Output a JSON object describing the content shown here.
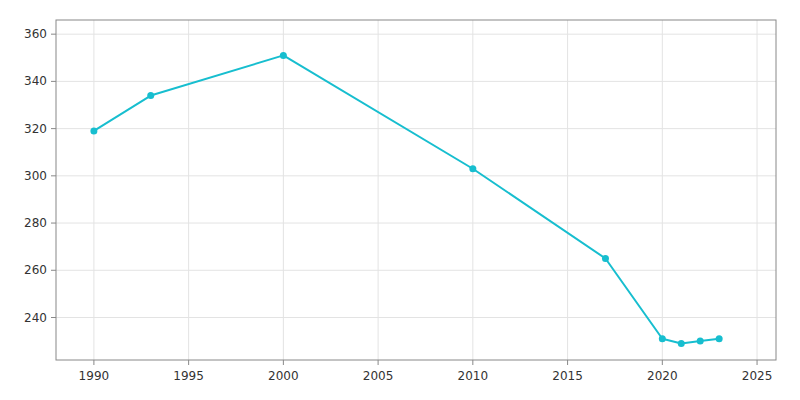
{
  "chart_data": {
    "type": "line",
    "x": [
      1990,
      1993,
      2000,
      2010,
      2017,
      2020,
      2021,
      2022,
      2023
    ],
    "values": [
      319,
      334,
      351,
      303,
      265,
      231,
      229,
      230,
      231
    ],
    "color": "#17becf",
    "marker": "circle",
    "line_style": "solid",
    "xlim": [
      1988,
      2026
    ],
    "ylim": [
      222,
      366
    ],
    "xticks": [
      1990,
      1995,
      2000,
      2005,
      2010,
      2015,
      2020,
      2025
    ],
    "yticks": [
      240,
      260,
      280,
      300,
      320,
      340,
      360
    ],
    "grid": true
  }
}
